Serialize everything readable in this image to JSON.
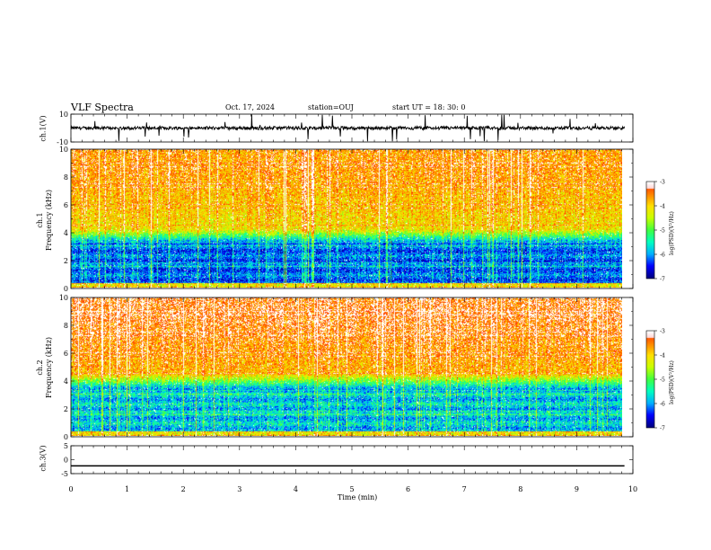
{
  "header": {
    "title": "VLF Spectra",
    "date": "Oct. 17, 2024",
    "station": "station=OUJ",
    "start": "start  UT =   18: 30: 0"
  },
  "colors": {
    "spectral_scale": [
      "#000080",
      "#0000ff",
      "#00b0ff",
      "#00ffc0",
      "#40ff40",
      "#c8ff00",
      "#ffe000",
      "#ff8000",
      "#ff2000",
      "#ffffff"
    ],
    "trace": "#000000",
    "background": "#ffffff"
  },
  "chart_data": [
    {
      "type": "line",
      "panel": "ch1-waveform",
      "ylabel": "ch.1(V)",
      "ylim": [
        -10,
        10
      ],
      "ytick_labels": [
        "10",
        "-10"
      ],
      "xlim": [
        0,
        10
      ],
      "trace_mean": 0,
      "trace_span_min": 9.85,
      "note_values": "noisy waveform around 0 V with spikes"
    },
    {
      "type": "heatmap",
      "panel": "ch1-spectrogram",
      "ylabel": "ch.1\nFrequency (kHz)",
      "ylabel_lines": [
        "ch.1",
        "Frequency (kHz)"
      ],
      "ylim": [
        0,
        10
      ],
      "ytick_labels": [
        "0",
        "2",
        "4",
        "6",
        "8",
        "10"
      ],
      "xlim": [
        0,
        10
      ],
      "data_span_min": 9.85,
      "colorbar": {
        "label": "log(PSD)(V²/Hz)",
        "ticks": [
          "-3",
          "-4",
          "-5",
          "-6",
          "-7"
        ],
        "range": [
          -7,
          -3
        ]
      },
      "low_band_khz": [
        0.3,
        3.2
      ],
      "low_band_level": -6.2,
      "high_band_level": -3.6
    },
    {
      "type": "heatmap",
      "panel": "ch2-spectrogram",
      "ylabel": "ch.2\nFrequency (kHz)",
      "ylabel_lines": [
        "ch.2",
        "Frequency (kHz)"
      ],
      "ylim": [
        0,
        10
      ],
      "ytick_labels": [
        "0",
        "2",
        "4",
        "6",
        "8",
        "10"
      ],
      "xlim": [
        0,
        10
      ],
      "data_span_min": 9.85,
      "colorbar": {
        "label": "log(PSD)(V²/Hz)",
        "ticks": [
          "-3",
          "-4",
          "-5",
          "-6",
          "-7"
        ],
        "range": [
          -7,
          -3
        ]
      },
      "low_band_khz": [
        0.3,
        3.5
      ],
      "low_band_level": -5.8,
      "high_band_level": -3.3
    },
    {
      "type": "line",
      "panel": "ch3-waveform",
      "ylabel": "ch.3(V)",
      "ylim": [
        -5,
        5
      ],
      "ytick_labels": [
        "5",
        "0",
        "-5"
      ],
      "xlim": [
        0,
        10
      ],
      "xlabel": "Time (min)",
      "xtick_labels": [
        "0",
        "1",
        "2",
        "3",
        "4",
        "5",
        "6",
        "7",
        "8",
        "9",
        "10"
      ],
      "constant_value": -2.2
    }
  ]
}
